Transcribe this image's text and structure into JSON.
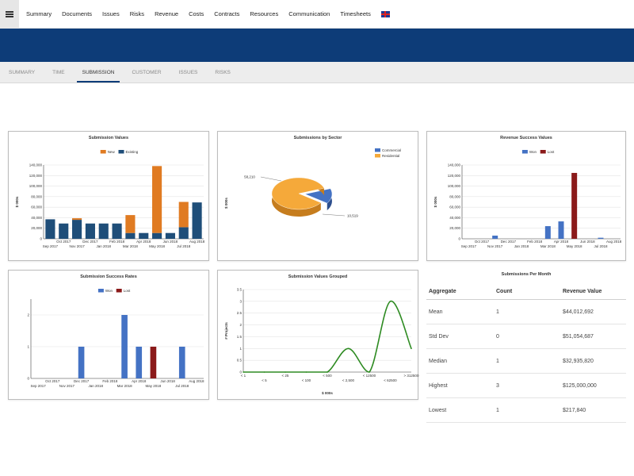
{
  "nav": {
    "items": [
      "Summary",
      "Documents",
      "Issues",
      "Risks",
      "Revenue",
      "Costs",
      "Contracts",
      "Resources",
      "Communication",
      "Timesheets"
    ],
    "flag_icon": "uk-flag-icon"
  },
  "tabs": [
    {
      "label": "SUMMARY",
      "active": false
    },
    {
      "label": "TIME",
      "active": false
    },
    {
      "label": "SUBMISSION",
      "active": true
    },
    {
      "label": "CUSTOMER",
      "active": false
    },
    {
      "label": "ISSUES",
      "active": false
    },
    {
      "label": "RISKS",
      "active": false
    }
  ],
  "colors": {
    "brand": "#0d3c78",
    "new": "#e07b22",
    "existing": "#1f4e79",
    "won": "#4472c4",
    "lost": "#8b1a1a",
    "line": "#2e8b22",
    "commercial": "#4472c4",
    "residential": "#f5a93a"
  },
  "chart_data": [
    {
      "type": "bar",
      "title": "Submission Values",
      "ylabel": "$ 000s",
      "stacked": true,
      "legend": "top",
      "ylim": [
        0,
        140000
      ],
      "yticks": [
        "0",
        "20,000",
        "40,000",
        "60,000",
        "80,000",
        "100,000",
        "120,000",
        "140,000"
      ],
      "categories": [
        "Sep 2017",
        "Oct 2017",
        "Nov 2017",
        "Dec 2017",
        "Jan 2018",
        "Feb 2018",
        "Mar 2018",
        "Apr 2018",
        "May 2018",
        "Jun 2018",
        "Jul 2018",
        "Aug 2018"
      ],
      "series": [
        {
          "name": "New",
          "values": [
            0,
            0,
            3000,
            0,
            0,
            0,
            34000,
            0,
            127000,
            0,
            48000,
            0
          ]
        },
        {
          "name": "Existing",
          "values": [
            37000,
            29000,
            36000,
            29000,
            29000,
            29000,
            11000,
            11000,
            11000,
            11000,
            22000,
            69000
          ]
        }
      ]
    },
    {
      "type": "pie",
      "title": "Submissions by Sector",
      "ylabel": "$ 000s",
      "legend": "top-right",
      "slices": [
        {
          "name": "Commercial",
          "value": 10519,
          "label": "10,519"
        },
        {
          "name": "Residential",
          "value": 58210,
          "label": "58,210"
        }
      ]
    },
    {
      "type": "bar",
      "title": "Revenue Success Values",
      "ylabel": "$ 000s",
      "legend": "top",
      "ylim": [
        0,
        140000
      ],
      "yticks": [
        "0",
        "20,000",
        "40,000",
        "60,000",
        "80,000",
        "100,000",
        "120,000",
        "140,000"
      ],
      "categories": [
        "Sep 2017",
        "Oct 2017",
        "Nov 2017",
        "Dec 2017",
        "Jan 2018",
        "Feb 2018",
        "Mar 2018",
        "Apr 2018",
        "May 2018",
        "Jun 2018",
        "Jul 2018",
        "Aug 2018"
      ],
      "series": [
        {
          "name": "Won",
          "values": [
            0,
            0,
            6000,
            0,
            0,
            0,
            24000,
            33000,
            0,
            0,
            2000,
            0
          ]
        },
        {
          "name": "Lost",
          "values": [
            0,
            0,
            0,
            0,
            0,
            0,
            0,
            0,
            125000,
            0,
            0,
            0
          ]
        }
      ]
    },
    {
      "type": "bar",
      "title": "Submission Success Rates",
      "ylabel": "# Projects",
      "legend": "top",
      "ylim": [
        0,
        2.5
      ],
      "yticks": [
        "0",
        "1",
        "2"
      ],
      "categories": [
        "Sep 2017",
        "Oct 2017",
        "Nov 2017",
        "Dec 2017",
        "Jan 2018",
        "Feb 2018",
        "Mar 2018",
        "Apr 2018",
        "May 2018",
        "Jun 2018",
        "Jul 2018",
        "Aug 2018"
      ],
      "series": [
        {
          "name": "Won",
          "values": [
            0,
            0,
            0,
            1,
            0,
            0,
            2,
            1,
            0,
            0,
            1,
            0
          ]
        },
        {
          "name": "Lost",
          "values": [
            0,
            0,
            0,
            0,
            0,
            0,
            0,
            0,
            1,
            0,
            0,
            0
          ]
        }
      ]
    },
    {
      "type": "line",
      "title": "Submission Values Grouped",
      "ylabel": "# Projects",
      "xlabel": "$ 000s",
      "ylim": [
        0,
        3.5
      ],
      "yticks": [
        "0",
        "0.5",
        "1",
        "1.5",
        "2",
        "2.5",
        "3",
        "3.5"
      ],
      "categories": [
        "< 1",
        "< 5",
        "< 25",
        "< 100",
        "< 500",
        "< 2,500",
        "< 12500",
        "< 62500",
        "> 312500"
      ],
      "values": [
        0,
        0,
        0,
        0,
        0,
        1,
        0,
        3,
        1
      ]
    }
  ],
  "table": {
    "title": "Submissions Per Month",
    "headers": [
      "Aggregate",
      "Count",
      "Revenue Value"
    ],
    "rows": [
      [
        "Mean",
        "1",
        "$44,012,692"
      ],
      [
        "Std Dev",
        "0",
        "$51,054,687"
      ],
      [
        "Median",
        "1",
        "$32,935,820"
      ],
      [
        "Highest",
        "3",
        "$125,000,000"
      ],
      [
        "Lowest",
        "1",
        "$217,840"
      ]
    ]
  }
}
